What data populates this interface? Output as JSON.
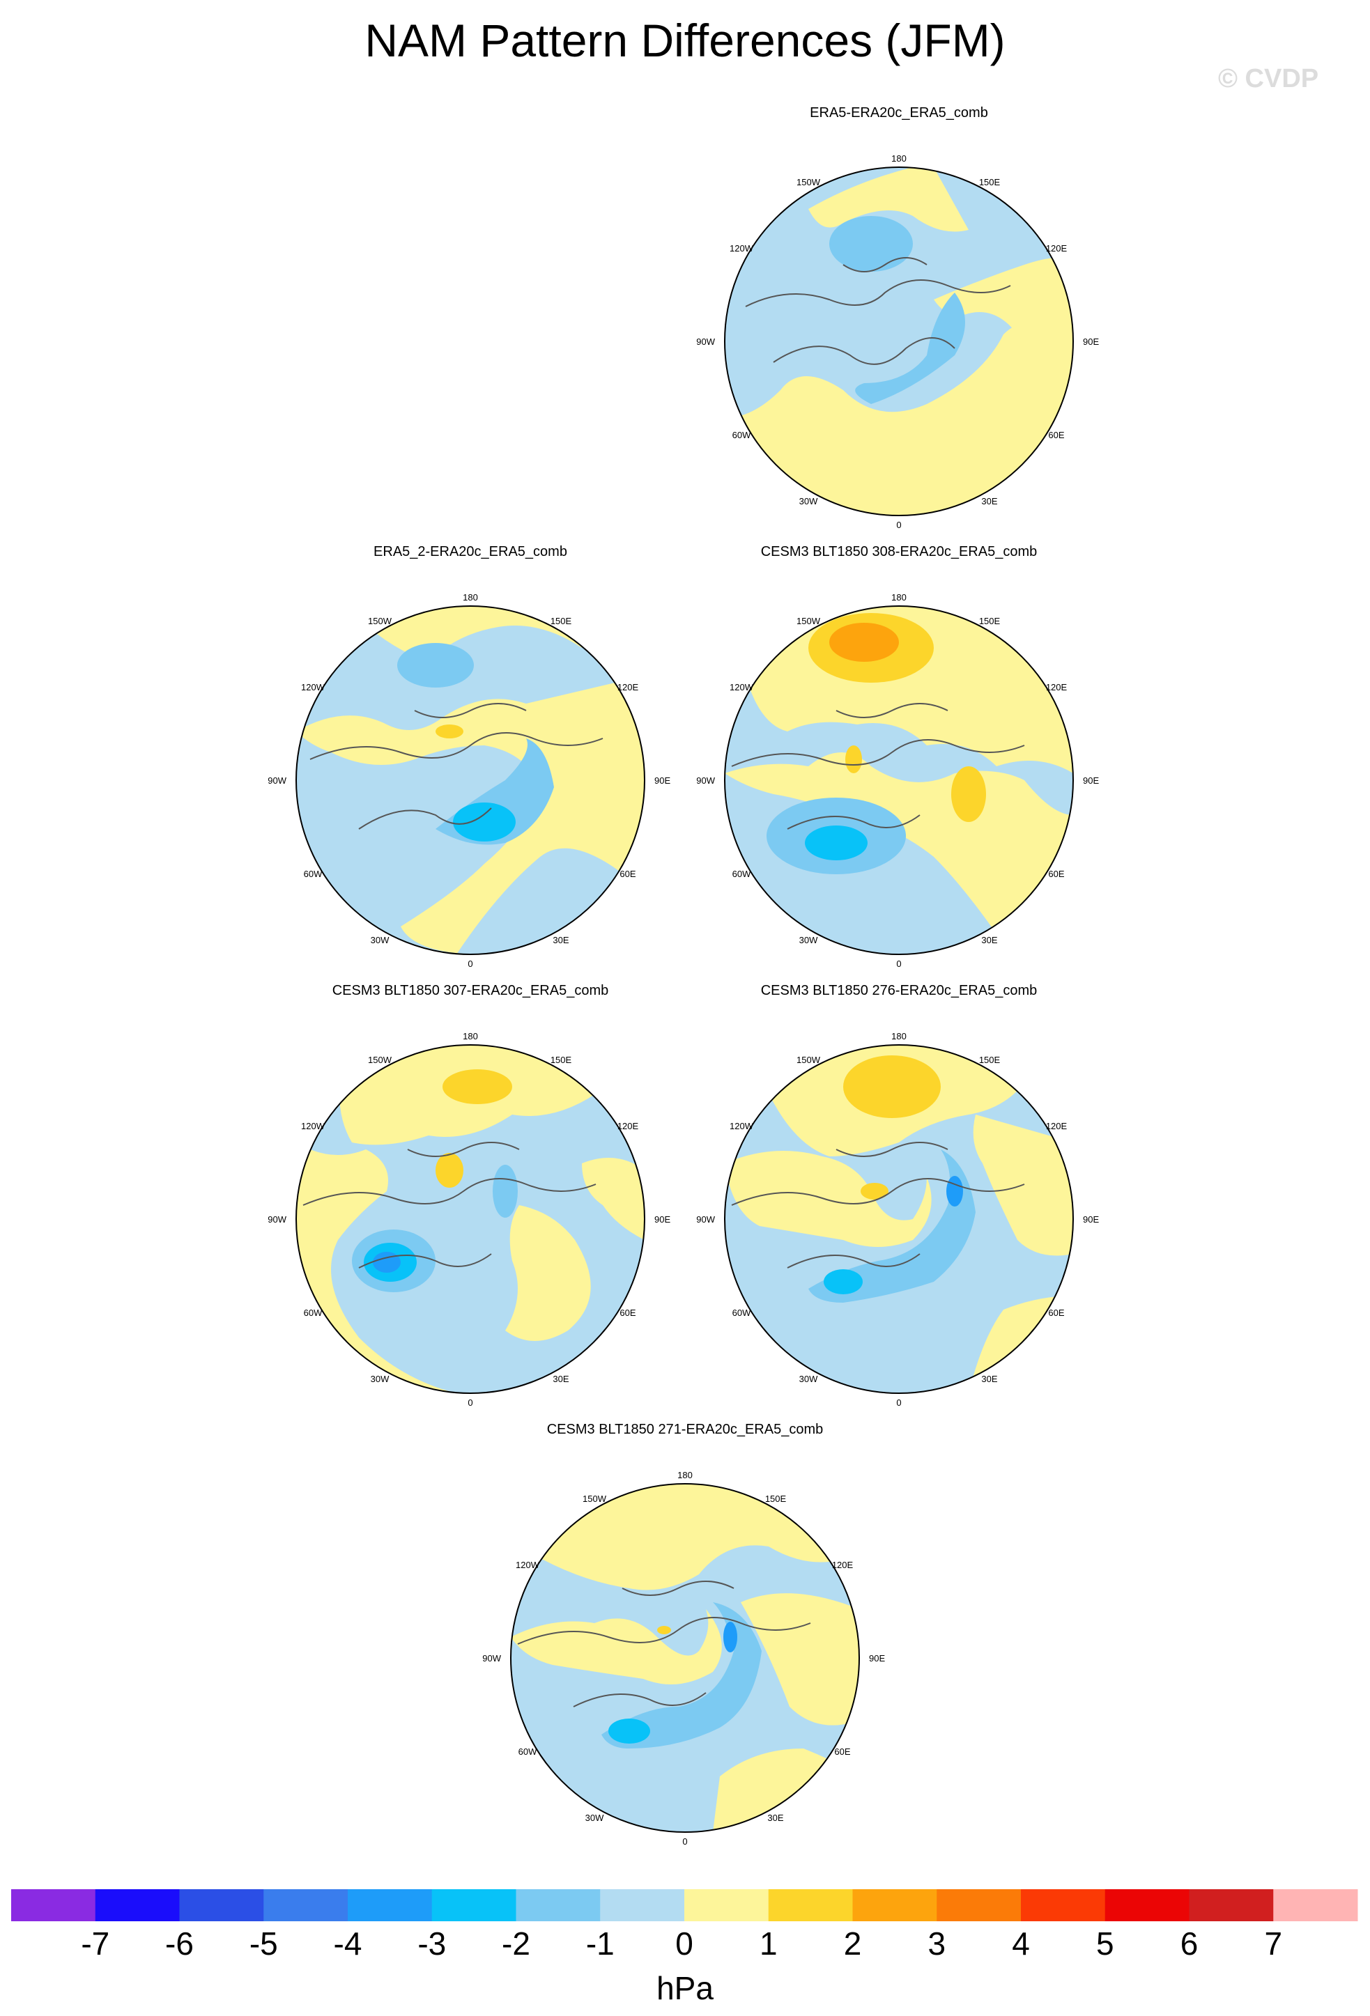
{
  "title": "NAM Pattern Differences (JFM)",
  "watermark": "© CVDP",
  "lon_labels": [
    "180",
    "150E",
    "120E",
    "90E",
    "60E",
    "30E",
    "0",
    "30W",
    "60W",
    "90W",
    "120W",
    "150W"
  ],
  "colors": {
    "ocean_bg": "#b3dcf2",
    "land_bg": "#fdf59a",
    "coastline": "#555555",
    "ring": "#000000"
  },
  "panels": [
    {
      "title": "ERA5-ERA20c_ERA5_comb"
    },
    {
      "title": "ERA5_2-ERA20c_ERA5_comb"
    },
    {
      "title": "CESM3 BLT1850 308-ERA20c_ERA5_comb"
    },
    {
      "title": "CESM3 BLT1850 307-ERA20c_ERA5_comb"
    },
    {
      "title": "CESM3 BLT1850 276-ERA20c_ERA5_comb"
    },
    {
      "title": "CESM3 BLT1850 271-ERA20c_ERA5_comb"
    }
  ],
  "colorbar": {
    "colors": [
      "#8a2be2",
      "#1a0dfb",
      "#2b4fe6",
      "#3a7ded",
      "#1e9cf9",
      "#08c2f8",
      "#7ccaf2",
      "#b3dcf2",
      "#fdf59a",
      "#fcd52b",
      "#fda40d",
      "#fb7b08",
      "#fb3a05",
      "#eb0505",
      "#d11f1f",
      "#ffb4b4"
    ],
    "labels": [
      "-7",
      "-6",
      "-5",
      "-4",
      "-3",
      "-2",
      "-1",
      "0",
      "1",
      "2",
      "3",
      "4",
      "5",
      "6",
      "7"
    ],
    "units": "hPa"
  }
}
